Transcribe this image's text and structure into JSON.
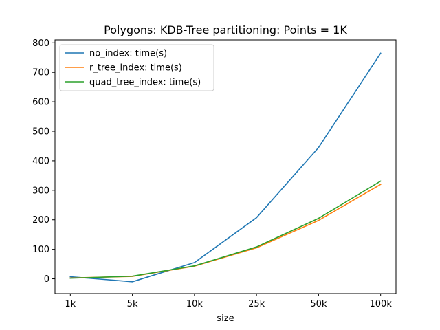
{
  "chart_data": {
    "type": "line",
    "title": "Polygons: KDB-Tree partitioning: Points = 1K",
    "xlabel": "size",
    "ylabel": "",
    "categories": [
      "1k",
      "5k",
      "10k",
      "25k",
      "50k",
      "100k"
    ],
    "ylim": [
      -50,
      810
    ],
    "yticks": [
      0,
      100,
      200,
      300,
      400,
      500,
      600,
      700,
      800
    ],
    "grid": false,
    "legend_position": "upper-left",
    "series": [
      {
        "name": "no_index: time(s)",
        "color": "#1f77b4",
        "values": [
          7,
          -10,
          55,
          207,
          445,
          765
        ]
      },
      {
        "name": "r_tree_index: time(s)",
        "color": "#ff7f0e",
        "values": [
          3,
          8,
          43,
          105,
          198,
          320
        ]
      },
      {
        "name": "quad_tree_index: time(s)",
        "color": "#2ca02c",
        "values": [
          2,
          9,
          44,
          108,
          205,
          331
        ]
      }
    ]
  }
}
